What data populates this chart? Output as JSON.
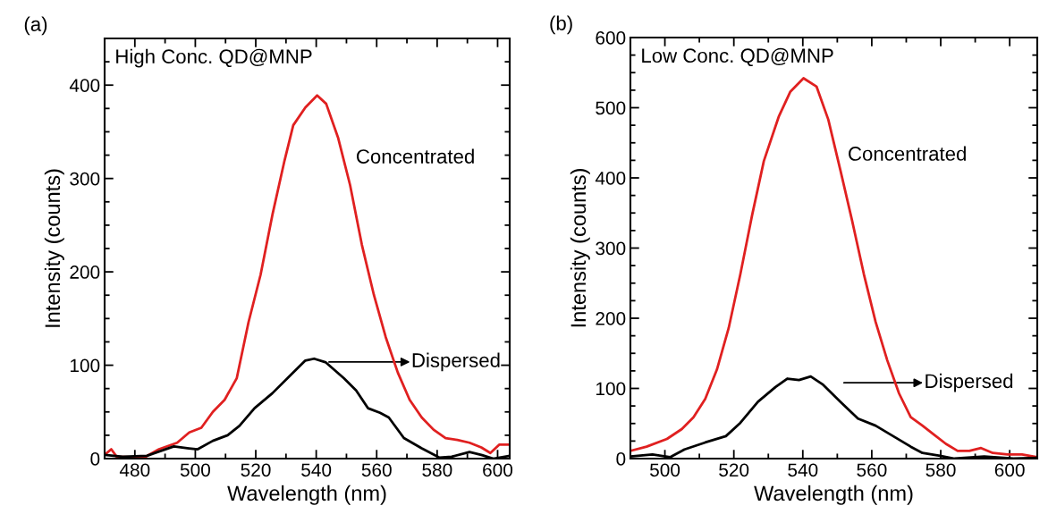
{
  "chart_data": [
    {
      "type": "line",
      "title": "(a)",
      "xlabel": "Wavelength (nm)",
      "ylabel": "Intensity (counts)",
      "xlim": [
        470,
        604
      ],
      "ylim": [
        0,
        450
      ],
      "xticks": [
        480,
        500,
        520,
        540,
        560,
        580,
        600
      ],
      "yticks": [
        0,
        100,
        200,
        300,
        400
      ],
      "grid": false,
      "marker": "none",
      "line_style": "solid",
      "annotations": [
        "High Conc. QD@MNP",
        "Concentrated",
        "Dispersed"
      ],
      "series": [
        {
          "color": "#e02020",
          "x": [
            470,
            472.2,
            474,
            483,
            488,
            494,
            498,
            502,
            505.8,
            509.7,
            513.7,
            517.6,
            521.6,
            525.5,
            529.5,
            532.4,
            536.4,
            540.3,
            543.3,
            547.2,
            551.2,
            555.1,
            559.1,
            563,
            567,
            570.9,
            574.9,
            578.8,
            582.8,
            586.7,
            590.7,
            594.6,
            597.6,
            600.6,
            604
          ],
          "values": [
            4,
            10,
            2,
            1,
            10,
            17,
            28,
            33,
            50,
            63,
            86,
            146,
            197,
            261,
            319,
            357,
            376,
            389,
            380,
            344,
            293,
            229,
            175,
            130,
            92,
            63,
            44,
            31,
            22,
            20,
            17,
            12,
            6,
            15,
            15
          ]
        },
        {
          "color": "#000000",
          "x": [
            470,
            476,
            484,
            492.9,
            497.9,
            500.8,
            505.8,
            510.7,
            514.6,
            519.6,
            525.5,
            531.4,
            536.4,
            539.3,
            543.2,
            549.2,
            553.2,
            557.1,
            561.1,
            564,
            569,
            574.9,
            580.8,
            584.8,
            590.7,
            594.6,
            598.6,
            604
          ],
          "values": [
            4,
            2,
            3,
            13,
            11,
            10,
            19,
            25,
            35,
            54,
            70,
            89,
            105,
            107,
            103,
            86,
            73,
            54,
            49,
            44,
            22,
            11,
            1,
            2,
            7,
            4,
            0,
            3
          ]
        }
      ]
    },
    {
      "type": "line",
      "title": "(b)",
      "xlabel": "Wavelength (nm)",
      "ylabel": "Intensity (counts)",
      "xlim": [
        490,
        608
      ],
      "ylim": [
        0,
        600
      ],
      "xticks": [
        500,
        520,
        540,
        560,
        580,
        600
      ],
      "yticks": [
        0,
        100,
        200,
        300,
        400,
        500,
        600
      ],
      "grid": false,
      "marker": "none",
      "line_style": "solid",
      "annotations": [
        "Low Conc. QD@MNP",
        "Concentrated",
        "Dispersed"
      ],
      "series": [
        {
          "color": "#e02020",
          "x": [
            490,
            494.7,
            500.6,
            504.9,
            508.3,
            511.7,
            515.1,
            518.5,
            521.9,
            525.3,
            528.7,
            533,
            536.4,
            540.2,
            544,
            547.4,
            550.9,
            554.3,
            557.7,
            561.1,
            564.5,
            567.9,
            571.3,
            574.7,
            578.1,
            581.5,
            584.9,
            588.3,
            591.7,
            595.1,
            599.4,
            603.6,
            608
          ],
          "values": [
            11,
            17,
            28,
            42,
            59,
            85,
            127,
            186,
            263,
            347,
            424,
            487,
            523,
            542,
            530,
            483,
            411,
            339,
            263,
            195,
            140,
            93,
            59,
            47,
            34,
            21,
            11,
            11,
            15,
            8,
            6,
            6,
            2
          ]
        },
        {
          "color": "#000000",
          "x": [
            490,
            496.4,
            501.5,
            505.7,
            511.7,
            517.7,
            521.9,
            527,
            532.1,
            535.5,
            538.9,
            542.3,
            545.7,
            550.9,
            556,
            561.1,
            566.2,
            571.3,
            574.7,
            579.8,
            584,
            592.6,
            601.1,
            608
          ],
          "values": [
            3,
            6,
            2,
            13,
            23,
            32,
            51,
            81,
            102,
            114,
            112,
            117,
            106,
            81,
            57,
            47,
            32,
            17,
            8,
            4,
            0,
            3,
            0,
            1
          ]
        }
      ]
    }
  ]
}
